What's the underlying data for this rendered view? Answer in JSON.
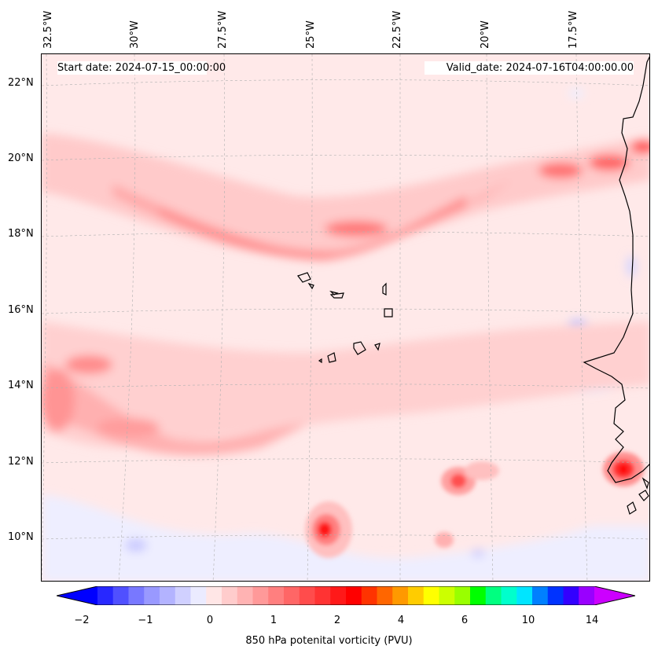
{
  "chart_data": {
    "type": "heatmap",
    "title": "",
    "start_date": "Start date: 2024-07-15_00:00:00",
    "valid_date": "Valid_date: 2024-07-16T04:00:00.00",
    "xlabel": "",
    "ylabel": "",
    "lon_ticks": [
      "32.5°W",
      "30°W",
      "27.5°W",
      "25°W",
      "22.5°W",
      "20°W",
      "17.5°W"
    ],
    "lat_ticks": [
      "22°N",
      "20°N",
      "18°N",
      "16°N",
      "14°N",
      "12°N",
      "10°N"
    ],
    "colorbar": {
      "label": "850 hPa potenital vorticity (PVU)",
      "ticks": [
        "−2",
        "−1",
        "0",
        "1",
        "2",
        "4",
        "6",
        "10",
        "14"
      ],
      "extend": "both",
      "colors": [
        "#0000ff",
        "#2828ff",
        "#5050ff",
        "#7878ff",
        "#9999ff",
        "#b3b3ff",
        "#d0d0ff",
        "#ebebff",
        "#ffe6e6",
        "#ffcccc",
        "#ffb3b3",
        "#ff9999",
        "#ff7f7f",
        "#ff6666",
        "#ff4c4c",
        "#ff3333",
        "#ff1919",
        "#ff0000",
        "#ff3300",
        "#ff6600",
        "#ff9900",
        "#ffcc00",
        "#ffff00",
        "#ccff00",
        "#99ff00",
        "#00ff00",
        "#00ff80",
        "#00ffcc",
        "#00e5ff",
        "#0080ff",
        "#0033ff",
        "#3300ff",
        "#9900ff",
        "#cc00ff"
      ]
    },
    "features": [
      {
        "name": "pv-band-northern",
        "value_pvu": 1.0
      },
      {
        "name": "pv-max-10N-25.5W",
        "value_pvu": 2.5
      },
      {
        "name": "pv-max-11.8N-16W",
        "value_pvu": 2.5
      },
      {
        "name": "pv-max-19.8N-17W",
        "value_pvu": 1.5
      },
      {
        "name": "negative-pv-patches",
        "value_pvu": -0.3
      }
    ]
  }
}
